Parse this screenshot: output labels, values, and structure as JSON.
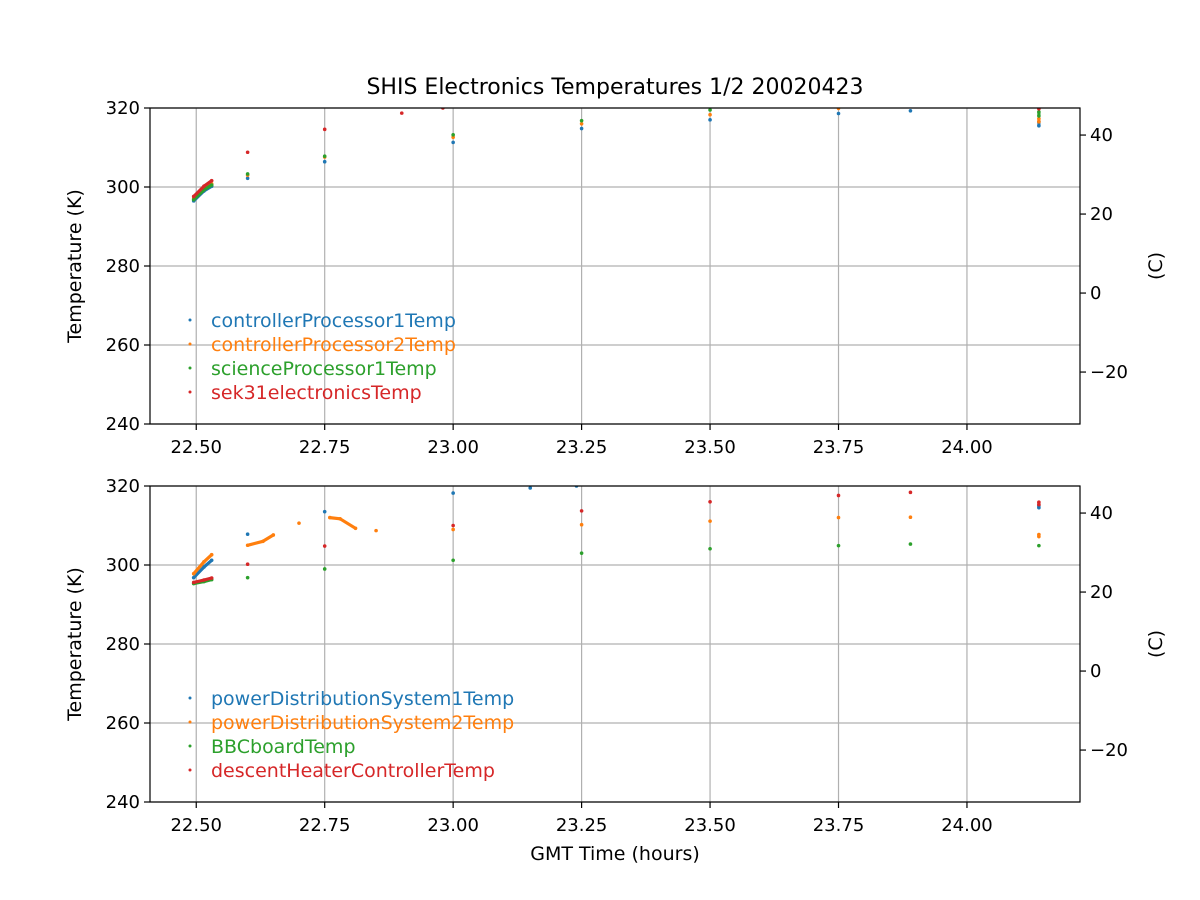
{
  "chart_data": [
    {
      "type": "scatter",
      "title": "SHIS Electronics Temperatures 1/2 20020423",
      "xlabel": "",
      "ylabel": "Temperature (K)",
      "ylabel_right": "(C)",
      "xlim": [
        22.41,
        24.22
      ],
      "ylim": [
        240,
        320
      ],
      "ylim_right": [
        -33.15,
        46.85
      ],
      "xticks": [
        "22.50",
        "22.75",
        "23.00",
        "23.25",
        "23.50",
        "23.75",
        "24.00"
      ],
      "xtick_values": [
        22.5,
        22.75,
        23.0,
        23.25,
        23.5,
        23.75,
        24.0
      ],
      "yticks": [
        240,
        260,
        280,
        300,
        320
      ],
      "yticks_right": [
        -20,
        0,
        20,
        40
      ],
      "grid": true,
      "legend_position": "lower-left",
      "series": [
        {
          "name": "controllerProcessor1Temp",
          "color": "#1f77b4",
          "points": [
            [
              22.495,
              296.5
            ],
            [
              22.515,
              299.0
            ],
            [
              22.53,
              300.2
            ],
            [
              22.6,
              302.2
            ],
            [
              22.75,
              306.4
            ],
            [
              23.0,
              311.3
            ],
            [
              23.25,
              314.8
            ],
            [
              23.5,
              317.0
            ],
            [
              23.75,
              318.6
            ],
            [
              23.89,
              319.3
            ],
            [
              24.14,
              315.5
            ],
            [
              24.14,
              316.5
            ]
          ]
        },
        {
          "name": "controllerProcessor2Temp",
          "color": "#ff7f0e",
          "points": [
            [
              22.495,
              297.0
            ],
            [
              22.515,
              299.8
            ],
            [
              22.53,
              300.8
            ],
            [
              22.6,
              303.0
            ],
            [
              22.75,
              307.6
            ],
            [
              23.0,
              312.6
            ],
            [
              23.25,
              316.0
            ],
            [
              23.5,
              318.3
            ],
            [
              23.75,
              319.9
            ],
            [
              23.89,
              320.5
            ],
            [
              24.14,
              316.5
            ],
            [
              24.14,
              317.3
            ]
          ]
        },
        {
          "name": "scienceProcessor1Temp",
          "color": "#2ca02c",
          "points": [
            [
              22.495,
              296.8
            ],
            [
              22.515,
              299.3
            ],
            [
              22.53,
              300.5
            ],
            [
              22.6,
              303.3
            ],
            [
              22.75,
              307.8
            ],
            [
              23.0,
              313.2
            ],
            [
              23.25,
              316.8
            ],
            [
              23.5,
              319.5
            ],
            [
              23.75,
              320.8
            ],
            [
              24.14,
              318.0
            ],
            [
              24.14,
              319.0
            ]
          ]
        },
        {
          "name": "sek31electronicsTemp",
          "color": "#d62728",
          "points": [
            [
              22.495,
              297.6
            ],
            [
              22.515,
              300.2
            ],
            [
              22.53,
              301.6
            ],
            [
              22.6,
              308.8
            ],
            [
              22.75,
              314.6
            ],
            [
              22.9,
              318.7
            ],
            [
              22.98,
              320.0
            ],
            [
              24.14,
              319.8
            ],
            [
              24.14,
              320.5
            ]
          ]
        }
      ]
    },
    {
      "type": "scatter",
      "title": "",
      "xlabel": "GMT Time (hours)",
      "ylabel": "Temperature (K)",
      "ylabel_right": "(C)",
      "xlim": [
        22.41,
        24.22
      ],
      "ylim": [
        240,
        320
      ],
      "ylim_right": [
        -33.15,
        46.85
      ],
      "xticks": [
        "22.50",
        "22.75",
        "23.00",
        "23.25",
        "23.50",
        "23.75",
        "24.00"
      ],
      "xtick_values": [
        22.5,
        22.75,
        23.0,
        23.25,
        23.5,
        23.75,
        24.0
      ],
      "yticks": [
        240,
        260,
        280,
        300,
        320
      ],
      "yticks_right": [
        -20,
        0,
        20,
        40
      ],
      "grid": true,
      "legend_position": "lower-left",
      "series": [
        {
          "name": "powerDistributionSystem1Temp",
          "color": "#1f77b4",
          "points": [
            [
              22.495,
              296.8
            ],
            [
              22.515,
              299.5
            ],
            [
              22.53,
              301.2
            ],
            [
              22.6,
              307.8
            ],
            [
              22.75,
              313.5
            ],
            [
              23.0,
              318.2
            ],
            [
              23.15,
              319.5
            ],
            [
              23.24,
              320.0
            ],
            [
              24.14,
              314.5
            ],
            [
              24.14,
              315.0
            ]
          ]
        },
        {
          "name": "powerDistributionSystem2Temp",
          "color": "#ff7f0e",
          "points": [
            [
              22.495,
              297.8
            ],
            [
              22.515,
              300.8
            ],
            [
              22.53,
              302.6
            ],
            [
              22.6,
              305.0
            ],
            [
              22.63,
              306.0
            ],
            [
              22.65,
              307.6
            ],
            [
              22.7,
              310.6
            ],
            [
              22.76,
              312.0
            ],
            [
              22.78,
              311.7
            ],
            [
              22.81,
              309.3
            ],
            [
              22.85,
              308.7
            ],
            [
              23.0,
              309.0
            ],
            [
              23.25,
              310.2
            ],
            [
              23.5,
              311.1
            ],
            [
              23.75,
              312.0
            ],
            [
              23.89,
              312.1
            ],
            [
              24.14,
              307.2
            ],
            [
              24.14,
              307.7
            ]
          ]
        },
        {
          "name": "BBCboardTemp",
          "color": "#2ca02c",
          "points": [
            [
              22.495,
              295.3
            ],
            [
              22.515,
              295.8
            ],
            [
              22.53,
              296.3
            ],
            [
              22.6,
              296.8
            ],
            [
              22.75,
              299.0
            ],
            [
              23.0,
              301.2
            ],
            [
              23.25,
              303.0
            ],
            [
              23.5,
              304.1
            ],
            [
              23.75,
              304.9
            ],
            [
              23.89,
              305.3
            ],
            [
              24.14,
              304.9
            ]
          ]
        },
        {
          "name": "descentHeaterControllerTemp",
          "color": "#d62728",
          "points": [
            [
              22.495,
              295.6
            ],
            [
              22.515,
              296.2
            ],
            [
              22.53,
              296.7
            ],
            [
              22.6,
              300.2
            ],
            [
              22.75,
              304.8
            ],
            [
              23.0,
              310.0
            ],
            [
              23.25,
              313.7
            ],
            [
              23.5,
              316.0
            ],
            [
              23.75,
              317.6
            ],
            [
              23.89,
              318.4
            ],
            [
              24.14,
              315.3
            ],
            [
              24.14,
              315.9
            ]
          ]
        }
      ]
    }
  ]
}
